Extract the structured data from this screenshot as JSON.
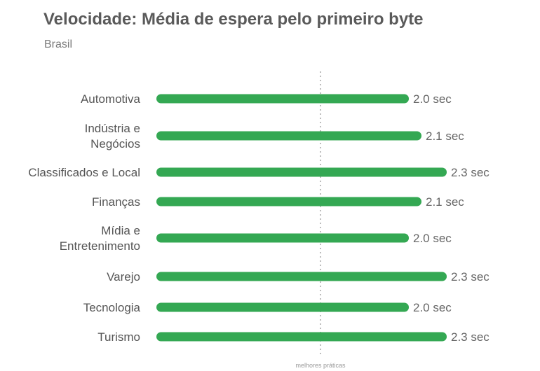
{
  "chart_data": {
    "type": "bar",
    "orientation": "horizontal",
    "title": "Velocidade: Média de espera pelo primeiro byte",
    "subtitle": "Brasil",
    "categories": [
      [
        "Automotiva"
      ],
      [
        "Indústria e",
        "Negócios"
      ],
      [
        "Classificados e Local"
      ],
      [
        "Finanças"
      ],
      [
        "Mídia e",
        "Entretenimento"
      ],
      [
        "Varejo"
      ],
      [
        "Tecnologia"
      ],
      [
        "Turismo"
      ]
    ],
    "values": [
      2.0,
      2.1,
      2.3,
      2.1,
      2.0,
      2.3,
      2.0,
      2.3
    ],
    "value_labels": [
      "2.0 sec",
      "2.1 sec",
      "2.3 sec",
      "2.1 sec",
      "2.0 sec",
      "2.3 sec",
      "2.0 sec",
      "2.3 sec"
    ],
    "reference_line": {
      "value": 1.3,
      "label": "melhores práticas"
    },
    "bar_color": "#34a853",
    "grid": false,
    "legend": "none"
  }
}
